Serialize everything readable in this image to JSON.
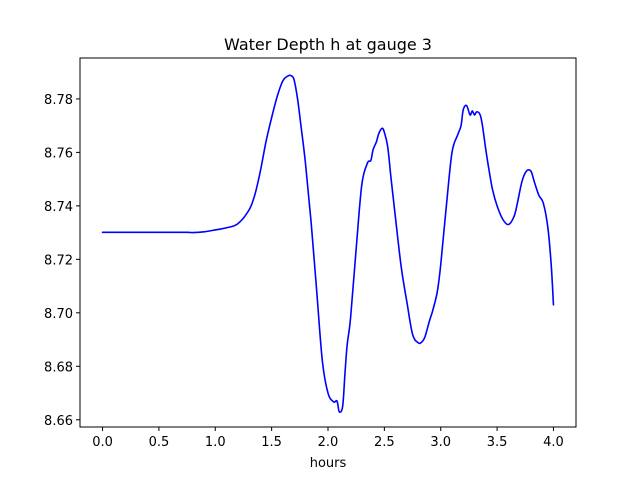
{
  "chart_data": {
    "type": "line",
    "title": "Water Depth h at gauge 3",
    "xlabel": "hours",
    "ylabel": "",
    "xlim": [
      -0.2,
      4.2
    ],
    "ylim": [
      8.6573,
      8.7953
    ],
    "xticks": [
      0.0,
      0.5,
      1.0,
      1.5,
      2.0,
      2.5,
      3.0,
      3.5,
      4.0
    ],
    "xtick_labels": [
      "0.0",
      "0.5",
      "1.0",
      "1.5",
      "2.0",
      "2.5",
      "3.0",
      "3.5",
      "4.0"
    ],
    "yticks": [
      8.66,
      8.68,
      8.7,
      8.72,
      8.74,
      8.76,
      8.78
    ],
    "ytick_labels": [
      "8.66",
      "8.68",
      "8.70",
      "8.72",
      "8.74",
      "8.76",
      "8.78"
    ],
    "grid": false,
    "legend": "none",
    "series": [
      {
        "color": "#0000ff",
        "x": [
          0.0,
          0.25,
          0.5,
          0.75,
          0.8,
          0.9,
          1.0,
          1.1,
          1.2,
          1.3,
          1.35,
          1.4,
          1.45,
          1.5,
          1.55,
          1.6,
          1.65,
          1.68,
          1.7,
          1.73,
          1.76,
          1.8,
          1.85,
          1.9,
          1.95,
          2.0,
          2.05,
          2.08,
          2.1,
          2.13,
          2.15,
          2.17,
          2.2,
          2.25,
          2.3,
          2.35,
          2.38,
          2.4,
          2.43,
          2.45,
          2.48,
          2.5,
          2.53,
          2.56,
          2.6,
          2.65,
          2.7,
          2.75,
          2.8,
          2.83,
          2.86,
          2.9,
          2.93,
          2.97,
          3.0,
          3.05,
          3.1,
          3.15,
          3.18,
          3.2,
          3.23,
          3.26,
          3.28,
          3.3,
          3.32,
          3.35,
          3.37,
          3.4,
          3.43,
          3.46,
          3.5,
          3.55,
          3.6,
          3.65,
          3.68,
          3.72,
          3.76,
          3.8,
          3.83,
          3.87,
          3.91,
          3.95,
          3.98,
          4.0
        ],
        "y": [
          8.7301,
          8.7301,
          8.7301,
          8.7301,
          8.73,
          8.7303,
          8.731,
          8.7318,
          8.7333,
          8.7385,
          8.744,
          8.753,
          8.764,
          8.773,
          8.781,
          8.7868,
          8.7887,
          8.7885,
          8.787,
          8.78,
          8.77,
          8.756,
          8.734,
          8.708,
          8.682,
          8.67,
          8.6667,
          8.667,
          8.663,
          8.665,
          8.677,
          8.688,
          8.698,
          8.724,
          8.748,
          8.756,
          8.757,
          8.761,
          8.764,
          8.767,
          8.769,
          8.7675,
          8.762,
          8.75,
          8.735,
          8.717,
          8.704,
          8.692,
          8.6888,
          8.689,
          8.691,
          8.697,
          8.701,
          8.708,
          8.718,
          8.74,
          8.76,
          8.7665,
          8.77,
          8.776,
          8.7775,
          8.774,
          8.7755,
          8.774,
          8.7752,
          8.774,
          8.77,
          8.761,
          8.753,
          8.746,
          8.74,
          8.735,
          8.733,
          8.736,
          8.741,
          8.749,
          8.753,
          8.753,
          8.749,
          8.744,
          8.741,
          8.732,
          8.718,
          8.703
        ]
      }
    ]
  }
}
